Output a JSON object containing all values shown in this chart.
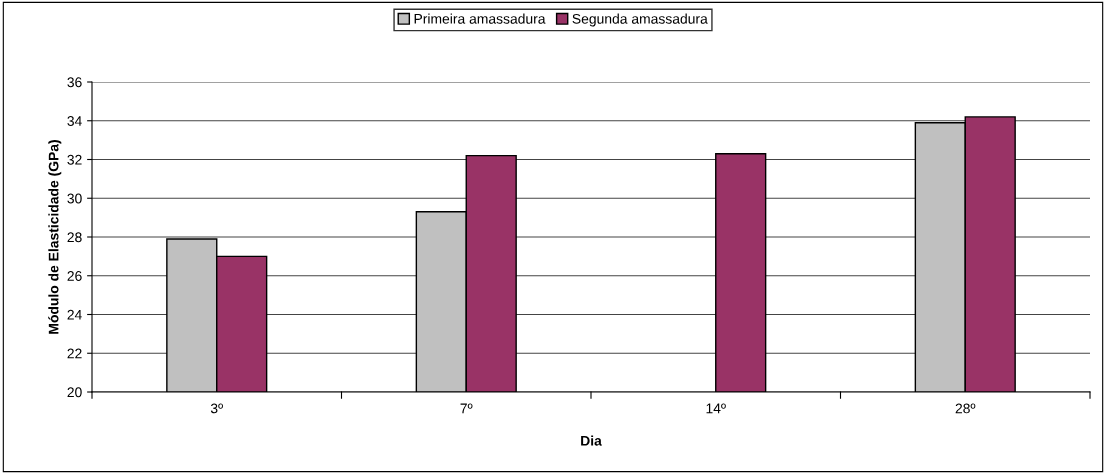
{
  "chart_data": {
    "type": "bar",
    "xlabel": "Dia",
    "ylabel": "Módulo de Elasticidade (GPa)",
    "categories": [
      "3º",
      "7º",
      "14º",
      "28º"
    ],
    "series": [
      {
        "name": "Primeira amassadura",
        "color": "#c0c0c0",
        "values": [
          27.9,
          29.3,
          null,
          33.9
        ]
      },
      {
        "name": "Segunda amassadura",
        "color": "#993366",
        "values": [
          27.0,
          32.2,
          32.3,
          34.2
        ]
      }
    ],
    "ylim": [
      20,
      36
    ],
    "yticks": [
      20,
      22,
      24,
      26,
      28,
      30,
      32,
      34,
      36
    ],
    "grid": "y",
    "legend": "top"
  }
}
